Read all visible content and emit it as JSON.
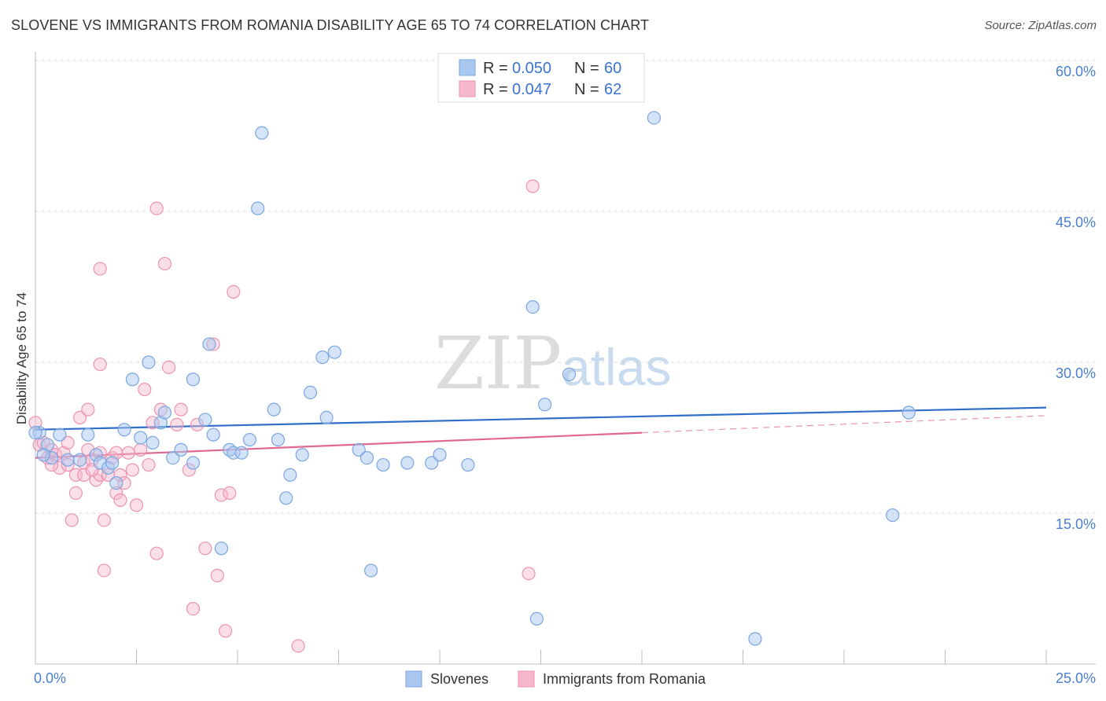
{
  "title": "SLOVENE VS IMMIGRANTS FROM ROMANIA DISABILITY AGE 65 TO 74 CORRELATION CHART",
  "source": "Source: ZipAtlas.com",
  "watermark": {
    "zip": "ZIP",
    "atlas": "atlas"
  },
  "legend_box": {
    "series1": {
      "r_label": "R =",
      "r_value": "0.050",
      "n_label": "N =",
      "n_value": "60"
    },
    "series2": {
      "r_label": "R =",
      "r_value": "0.047",
      "n_label": "N =",
      "n_value": "62"
    }
  },
  "colors": {
    "series1_fill": "#a9c8f0",
    "series1_stroke": "#7aa6e0",
    "series1_line": "#2f6fc9",
    "series2_fill": "#f7b8cc",
    "series2_stroke": "#ec93b1",
    "series2_line": "#e06892",
    "tick": "#4a7fcf",
    "grid": "#dddddd"
  },
  "chart_data": {
    "type": "scatter",
    "title": "SLOVENE VS IMMIGRANTS FROM ROMANIA DISABILITY AGE 65 TO 74 CORRELATION CHART",
    "xlabel": "",
    "ylabel": "Disability Age 65 to 74",
    "xlim": [
      0,
      25
    ],
    "ylim": [
      0,
      60
    ],
    "x_tick_labels": [
      "0.0%",
      "25.0%"
    ],
    "y_ticks": [
      15,
      30,
      45,
      60
    ],
    "y_tick_labels": [
      "15.0%",
      "30.0%",
      "45.0%",
      "60.0%"
    ],
    "legend_position": "top-center",
    "series": [
      {
        "name": "Slovenes",
        "r": 0.05,
        "n": 60,
        "trend": {
          "x": [
            0,
            25
          ],
          "y": [
            23.3,
            25.5
          ]
        },
        "points": [
          [
            0.1,
            23.0
          ],
          [
            0.3,
            21.8
          ],
          [
            0.4,
            20.5
          ],
          [
            0.6,
            22.8
          ],
          [
            0.8,
            20.3
          ],
          [
            1.1,
            20.3
          ],
          [
            1.3,
            22.8
          ],
          [
            1.5,
            20.8
          ],
          [
            1.6,
            20.0
          ],
          [
            1.8,
            19.5
          ],
          [
            1.9,
            20.0
          ],
          [
            2.0,
            18.0
          ],
          [
            2.2,
            23.3
          ],
          [
            2.4,
            28.3
          ],
          [
            2.6,
            22.5
          ],
          [
            2.8,
            30.0
          ],
          [
            2.9,
            22.0
          ],
          [
            3.1,
            24.0
          ],
          [
            3.2,
            25.0
          ],
          [
            3.4,
            20.5
          ],
          [
            3.6,
            21.3
          ],
          [
            3.9,
            20.0
          ],
          [
            3.9,
            28.3
          ],
          [
            4.2,
            24.3
          ],
          [
            4.3,
            31.8
          ],
          [
            4.4,
            22.8
          ],
          [
            4.6,
            11.5
          ],
          [
            4.8,
            21.3
          ],
          [
            4.9,
            21.0
          ],
          [
            5.1,
            21.0
          ],
          [
            5.3,
            22.3
          ],
          [
            5.5,
            45.3
          ],
          [
            5.6,
            52.8
          ],
          [
            5.9,
            25.3
          ],
          [
            6.0,
            22.3
          ],
          [
            6.2,
            16.5
          ],
          [
            6.3,
            18.8
          ],
          [
            6.6,
            20.8
          ],
          [
            6.8,
            27.0
          ],
          [
            7.1,
            30.5
          ],
          [
            7.2,
            24.5
          ],
          [
            7.4,
            31.0
          ],
          [
            8.0,
            21.3
          ],
          [
            8.2,
            20.5
          ],
          [
            8.3,
            9.3
          ],
          [
            8.6,
            19.8
          ],
          [
            9.2,
            20.0
          ],
          [
            9.8,
            20.0
          ],
          [
            10.0,
            20.8
          ],
          [
            10.7,
            19.8
          ],
          [
            12.3,
            35.5
          ],
          [
            12.4,
            4.5
          ],
          [
            12.6,
            25.8
          ],
          [
            13.2,
            28.8
          ],
          [
            15.3,
            54.3
          ],
          [
            17.8,
            2.5
          ],
          [
            21.2,
            14.8
          ],
          [
            21.6,
            25.0
          ],
          [
            0.0,
            23.0
          ],
          [
            0.2,
            20.8
          ]
        ]
      },
      {
        "name": "Immigrants from Romania",
        "r": 0.047,
        "n": 62,
        "trend": {
          "x": [
            0,
            15
          ],
          "y": [
            20.5,
            23.0
          ]
        },
        "trend_dashed": {
          "x": [
            15,
            25
          ],
          "y": [
            23.0,
            24.7
          ]
        },
        "points": [
          [
            0.1,
            21.8
          ],
          [
            0.2,
            22.0
          ],
          [
            0.3,
            20.5
          ],
          [
            0.4,
            21.3
          ],
          [
            0.5,
            20.8
          ],
          [
            0.6,
            19.5
          ],
          [
            0.7,
            21.0
          ],
          [
            0.8,
            19.8
          ],
          [
            0.9,
            14.3
          ],
          [
            1.0,
            18.8
          ],
          [
            1.0,
            17.0
          ],
          [
            1.1,
            24.5
          ],
          [
            1.2,
            20.0
          ],
          [
            1.2,
            18.8
          ],
          [
            1.3,
            25.3
          ],
          [
            1.3,
            21.3
          ],
          [
            1.4,
            20.3
          ],
          [
            1.5,
            18.3
          ],
          [
            1.6,
            18.8
          ],
          [
            1.6,
            21.0
          ],
          [
            1.6,
            39.3
          ],
          [
            1.6,
            29.8
          ],
          [
            1.7,
            9.3
          ],
          [
            1.7,
            14.3
          ],
          [
            1.8,
            18.8
          ],
          [
            1.9,
            20.5
          ],
          [
            2.0,
            21.0
          ],
          [
            2.0,
            17.0
          ],
          [
            2.1,
            18.8
          ],
          [
            2.1,
            16.3
          ],
          [
            2.2,
            18.0
          ],
          [
            2.3,
            21.0
          ],
          [
            2.4,
            19.3
          ],
          [
            2.5,
            15.8
          ],
          [
            2.6,
            21.3
          ],
          [
            2.7,
            27.3
          ],
          [
            2.8,
            19.8
          ],
          [
            2.9,
            24.0
          ],
          [
            3.0,
            45.3
          ],
          [
            3.0,
            11.0
          ],
          [
            3.1,
            25.3
          ],
          [
            3.2,
            39.8
          ],
          [
            3.3,
            29.5
          ],
          [
            3.5,
            23.8
          ],
          [
            3.6,
            25.3
          ],
          [
            3.8,
            19.3
          ],
          [
            3.9,
            5.5
          ],
          [
            4.0,
            23.8
          ],
          [
            4.2,
            11.5
          ],
          [
            4.4,
            31.8
          ],
          [
            4.5,
            8.8
          ],
          [
            4.6,
            16.8
          ],
          [
            4.7,
            3.3
          ],
          [
            4.8,
            17.0
          ],
          [
            4.9,
            37.0
          ],
          [
            6.5,
            1.8
          ],
          [
            12.3,
            47.5
          ],
          [
            12.2,
            9.0
          ],
          [
            0.0,
            24.0
          ],
          [
            0.4,
            19.8
          ],
          [
            0.8,
            22.0
          ],
          [
            1.4,
            19.3
          ]
        ]
      }
    ]
  },
  "bottom_legend": {
    "series1": "Slovenes",
    "series2": "Immigrants from Romania"
  }
}
